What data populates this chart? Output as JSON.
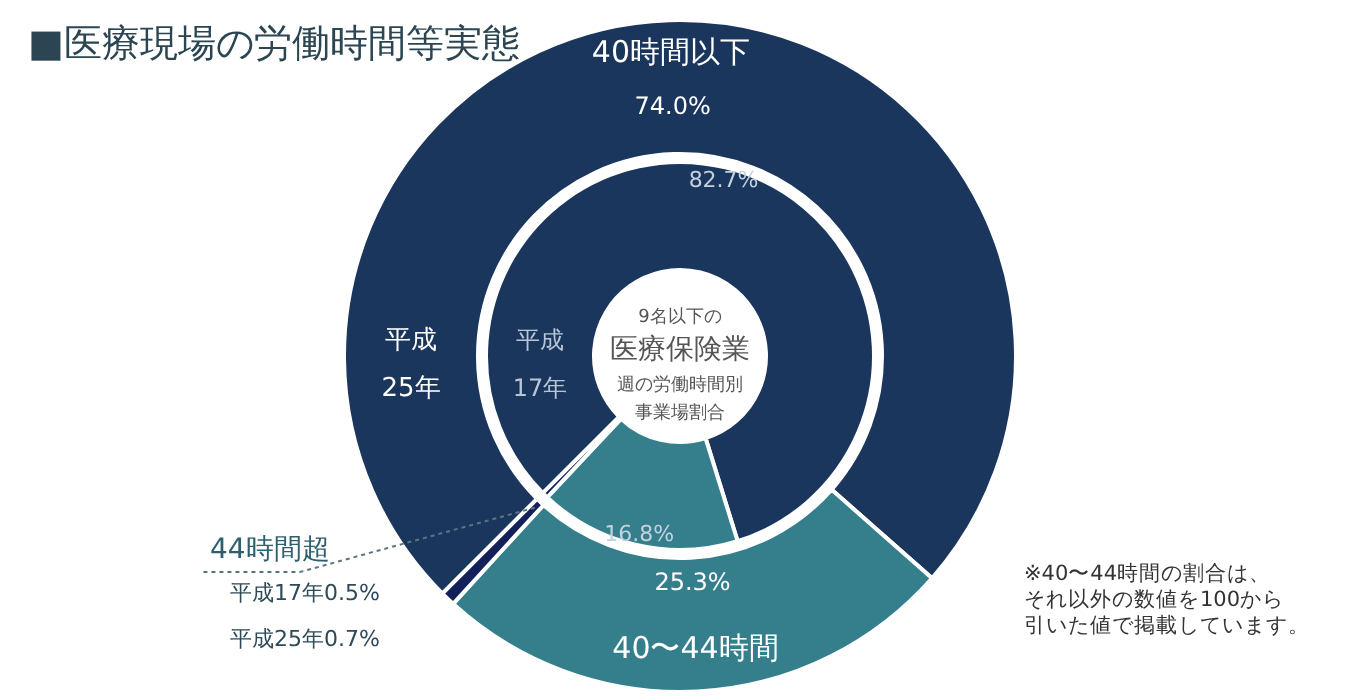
{
  "chart_data": {
    "type": "donut",
    "title": "■医療現場の労働時間等実態",
    "categories": [
      "40時間以下",
      "40〜44時間",
      "44時間超"
    ],
    "colors": [
      "#1b365d",
      "#357f8d",
      "#14205a"
    ],
    "series": [
      {
        "name": "平成25年",
        "values": [
          74.0,
          25.3,
          0.7
        ],
        "value_labels": [
          "74.0%",
          "25.3%",
          "平成25年0.7%"
        ]
      },
      {
        "name": "平成17年",
        "values": [
          82.7,
          16.8,
          0.5
        ],
        "value_labels": [
          "82.7%",
          "16.8%",
          "平成17年0.5%"
        ]
      }
    ],
    "annotations": [
      "9名以下の",
      "医療保険業",
      "週の労働時間別",
      "事業場割合",
      "※40〜44時間の割合は、",
      "それ以外の数値を100から",
      "引いた値で掲載しています。"
    ]
  }
}
